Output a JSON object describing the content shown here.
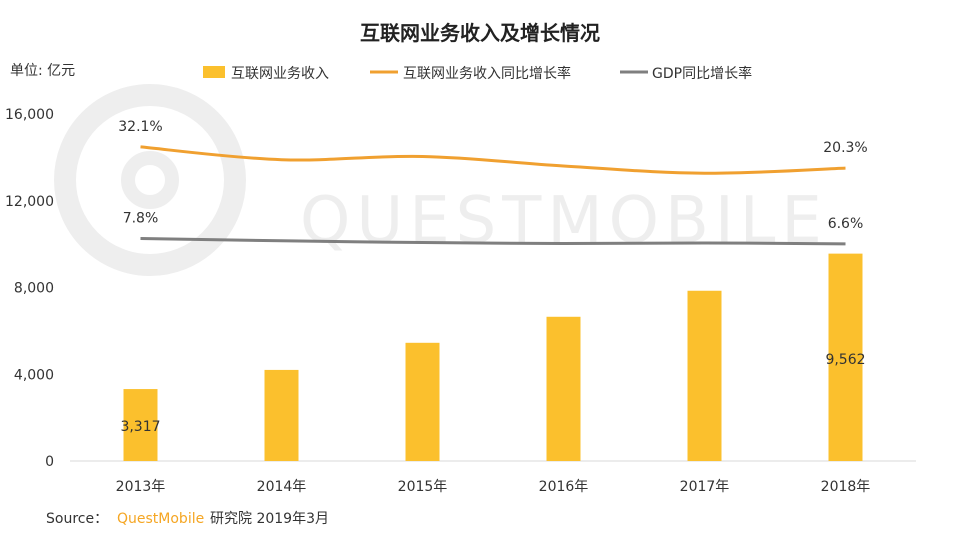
{
  "watermark": "QUESTMOBILE",
  "source": {
    "prefix": "Source：",
    "brand": "QuestMobile",
    "suffix": " 研究院 2019年3月"
  },
  "colors": {
    "bar": "#fbc02d",
    "internet_growth": "#f0a030",
    "gdp_growth": "#7f7f7f",
    "axis": "#d9d9d9",
    "brand": "#f5a623"
  },
  "chart_data": {
    "type": "bar",
    "title": "互联网业务收入及增长情况",
    "unit_label": "单位: 亿元",
    "categories": [
      "2013年",
      "2014年",
      "2015年",
      "2016年",
      "2017年",
      "2018年"
    ],
    "ylim": [
      0,
      16000
    ],
    "yticks": [
      "0",
      "4,000",
      "8,000",
      "12,000",
      "16,000"
    ],
    "grid": false,
    "legend_position": "top",
    "series": [
      {
        "name": "互联网业务收入",
        "kind": "bar",
        "values": [
          3317,
          4200,
          5450,
          6650,
          7850,
          9562
        ]
      },
      {
        "name": "互联网业务收入同比增长率",
        "kind": "line",
        "unit": "%",
        "values": [
          32.1,
          25.0,
          26.8,
          21.5,
          17.5,
          20.3
        ]
      },
      {
        "name": "GDP同比增长率",
        "kind": "line",
        "unit": "%",
        "values": [
          7.8,
          7.3,
          6.9,
          6.7,
          6.8,
          6.6
        ]
      }
    ],
    "data_labels": [
      {
        "series": 0,
        "index": 0,
        "text": "3,317"
      },
      {
        "series": 0,
        "index": 5,
        "text": "9,562"
      },
      {
        "series": 1,
        "index": 0,
        "text": "32.1%"
      },
      {
        "series": 1,
        "index": 5,
        "text": "20.3%"
      },
      {
        "series": 2,
        "index": 0,
        "text": "7.8%"
      },
      {
        "series": 2,
        "index": 5,
        "text": "6.6%"
      }
    ]
  }
}
